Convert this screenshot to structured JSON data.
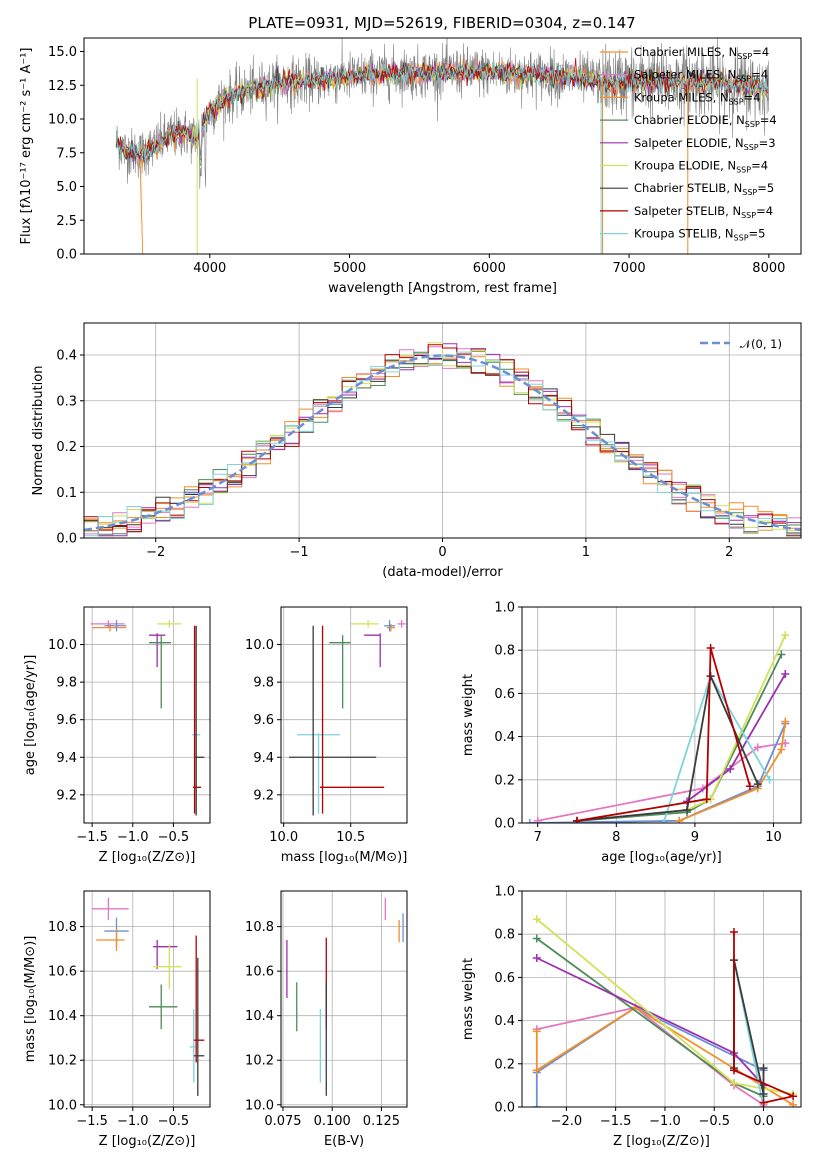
{
  "page": {
    "title": "PLATE=0931, MJD=52619, FIBERID=0304, z=0.147"
  },
  "colors": [
    "#f28e2b",
    "#e377c2",
    "#f28e2b",
    "#4e8c5a",
    "#9b30b0",
    "#d4e157",
    "#3b3b3b",
    "#b30000",
    "#7fd3dc"
  ],
  "chart_data": [
    {
      "id": "spectrum",
      "type": "line",
      "title": "PLATE=0931, MJD=52619, FIBERID=0304, z=0.147",
      "xlabel": "wavelength [Angstrom, rest frame]",
      "ylabel": "Flux [fλ10⁻¹⁷ erg cm⁻² s⁻¹ A⁻¹]",
      "xlim": [
        3100,
        8230
      ],
      "ylim": [
        0,
        16
      ],
      "xticks": [
        "4000",
        "5000",
        "6000",
        "7000",
        "8000"
      ],
      "yticks": [
        "0.0",
        "2.5",
        "5.0",
        "7.5",
        "10.0",
        "12.5",
        "15.0"
      ],
      "grid": false,
      "legend": "upper right",
      "series": [
        {
          "name": "Chabrier MILES, N",
          "sub": "SSP",
          "suffix": "=4",
          "color": "#f28e2b"
        },
        {
          "name": "Salpeter MILES, N",
          "sub": "SSP",
          "suffix": "=4",
          "color": "#e377c2"
        },
        {
          "name": "Kroupa MILES, N",
          "sub": "SSP",
          "suffix": "=4",
          "color": "#f28e2b"
        },
        {
          "name": "Chabrier ELODIE, N",
          "sub": "SSP",
          "suffix": "=4",
          "color": "#4e8c5a"
        },
        {
          "name": "Salpeter ELODIE, N",
          "sub": "SSP",
          "suffix": "=3",
          "color": "#9b30b0"
        },
        {
          "name": "Kroupa ELODIE, N",
          "sub": "SSP",
          "suffix": "=4",
          "color": "#d4e157"
        },
        {
          "name": "Chabrier STELIB, N",
          "sub": "SSP",
          "suffix": "=5",
          "color": "#3b3b3b"
        },
        {
          "name": "Salpeter STELIB, N",
          "sub": "SSP",
          "suffix": "=4",
          "color": "#b30000"
        },
        {
          "name": "Kroupa STELIB, N",
          "sub": "SSP",
          "suffix": "=5",
          "color": "#7fd3dc"
        }
      ],
      "continuum": [
        [
          3330,
          8.3
        ],
        [
          3400,
          7.6
        ],
        [
          3500,
          7.4
        ],
        [
          3600,
          7.9
        ],
        [
          3700,
          8.7
        ],
        [
          3800,
          9.0
        ],
        [
          3900,
          8.6
        ],
        [
          4000,
          10.5
        ],
        [
          4100,
          11.5
        ],
        [
          4300,
          12.2
        ],
        [
          4500,
          12.7
        ],
        [
          4700,
          12.8
        ],
        [
          4900,
          13.0
        ],
        [
          5100,
          13.2
        ],
        [
          5300,
          13.4
        ],
        [
          5500,
          13.4
        ],
        [
          5700,
          13.5
        ],
        [
          5900,
          13.5
        ],
        [
          6100,
          13.4
        ],
        [
          6300,
          13.3
        ],
        [
          6500,
          13.2
        ],
        [
          6700,
          12.9
        ],
        [
          6900,
          12.7
        ],
        [
          7100,
          12.8
        ],
        [
          7300,
          12.7
        ],
        [
          7500,
          12.8
        ],
        [
          7700,
          12.6
        ],
        [
          7900,
          12.4
        ],
        [
          8000,
          12.3
        ]
      ]
    },
    {
      "id": "residuals",
      "type": "step",
      "xlabel": "(data-model)/error",
      "ylabel": "Normed distribution",
      "xlim": [
        -2.5,
        2.5
      ],
      "ylim": [
        0,
        0.47
      ],
      "xticks": [
        "−2",
        "−1",
        "0",
        "1",
        "2"
      ],
      "yticks": [
        "0.0",
        "0.1",
        "0.2",
        "0.3",
        "0.4"
      ],
      "grid": true,
      "legend": "upper right",
      "legend_label": "𝒩(0, 1)",
      "legend_color": "#6b8fd6",
      "bin_width": 0.1
    },
    {
      "id": "age_vs_Z",
      "type": "errorbar",
      "xlabel": "Z [log₁₀(Z/Z⊙)]",
      "ylabel": "age  [log₁₀(age/yr)]",
      "xlim": [
        -1.6,
        -0.05
      ],
      "ylim": [
        9.05,
        10.2
      ],
      "xticks": [
        "−1.5",
        "−1.0",
        "−0.5"
      ],
      "yticks": [
        "9.2",
        "9.4",
        "9.6",
        "9.8",
        "10.0"
      ],
      "grid": true,
      "points": [
        {
          "color": "#e377c2",
          "x": -1.3,
          "xerr": [
            0.22,
            0.2
          ],
          "y": 10.11,
          "yerr": [
            0.02,
            0.02
          ]
        },
        {
          "color": "#f28e2b",
          "x": -1.28,
          "xerr": [
            0.22,
            0.2
          ],
          "y": 10.09,
          "yerr": [
            0.02,
            0.02
          ]
        },
        {
          "color": "#6b8fd6",
          "x": -1.2,
          "xerr": [
            0.15,
            0.12
          ],
          "y": 10.1,
          "yerr": [
            0.03,
            0.03
          ]
        },
        {
          "color": "#d4e157",
          "x": -0.55,
          "xerr": [
            0.15,
            0.15
          ],
          "y": 10.11,
          "yerr": [
            0.02,
            0.02
          ]
        },
        {
          "color": "#9b30b0",
          "x": -0.7,
          "xerr": [
            0.1,
            0.1
          ],
          "y": 10.05,
          "yerr": [
            0.17,
            0.01
          ]
        },
        {
          "color": "#4e8c5a",
          "x": -0.65,
          "xerr": [
            0.15,
            0.12
          ],
          "y": 10.01,
          "yerr": [
            0.35,
            0.04
          ]
        },
        {
          "color": "#7fd3dc",
          "x": -0.22,
          "xerr": [
            0.05,
            0.05
          ],
          "y": 9.52,
          "yerr": [
            0.42,
            0.01
          ]
        },
        {
          "color": "#3b3b3b",
          "x": -0.22,
          "xerr": [
            0.02,
            0.1
          ],
          "y": 9.4,
          "yerr": [
            0.31,
            0.7
          ]
        },
        {
          "color": "#b30000",
          "x": -0.24,
          "xerr": [
            0.02,
            0.08
          ],
          "y": 9.24,
          "yerr": [
            0.14,
            0.86
          ]
        }
      ]
    },
    {
      "id": "age_vs_mass",
      "type": "errorbar",
      "xlabel": "mass [log₁₀(M/M⊙)]",
      "ylabel": "",
      "xlim": [
        9.98,
        10.92
      ],
      "ylim": [
        9.05,
        10.2
      ],
      "xticks": [
        "10.0",
        "10.5"
      ],
      "yticks": [
        "9.2",
        "9.4",
        "9.6",
        "9.8",
        "10.0"
      ],
      "grid": true,
      "points": [
        {
          "color": "#e377c2",
          "x": 10.88,
          "xerr": [
            0.03,
            0.03
          ],
          "y": 10.11,
          "yerr": [
            0.02,
            0.02
          ]
        },
        {
          "color": "#f28e2b",
          "x": 10.8,
          "xerr": [
            0.03,
            0.03
          ],
          "y": 10.09,
          "yerr": [
            0.02,
            0.02
          ]
        },
        {
          "color": "#6b8fd6",
          "x": 10.79,
          "xerr": [
            0.04,
            0.04
          ],
          "y": 10.1,
          "yerr": [
            0.03,
            0.03
          ]
        },
        {
          "color": "#d4e157",
          "x": 10.63,
          "xerr": [
            0.13,
            0.08
          ],
          "y": 10.11,
          "yerr": [
            0.02,
            0.02
          ]
        },
        {
          "color": "#9b30b0",
          "x": 10.72,
          "xerr": [
            0.12,
            0.0
          ],
          "y": 10.05,
          "yerr": [
            0.17,
            0.01
          ]
        },
        {
          "color": "#4e8c5a",
          "x": 10.44,
          "xerr": [
            0.1,
            0.06
          ],
          "y": 10.01,
          "yerr": [
            0.35,
            0.04
          ]
        },
        {
          "color": "#7fd3dc",
          "x": 10.26,
          "xerr": [
            0.16,
            0.16
          ],
          "y": 9.52,
          "yerr": [
            0.42,
            0.01
          ]
        },
        {
          "color": "#3b3b3b",
          "x": 10.22,
          "xerr": [
            0.18,
            0.47
          ],
          "y": 9.4,
          "yerr": [
            0.31,
            0.7
          ]
        },
        {
          "color": "#b30000",
          "x": 10.29,
          "xerr": [
            0.02,
            0.46
          ],
          "y": 9.24,
          "yerr": [
            0.14,
            0.86
          ]
        }
      ]
    },
    {
      "id": "massweight_vs_age",
      "type": "line",
      "xlabel": "age  [log₁₀(age/yr)]",
      "ylabel": "mass weight",
      "xlim": [
        6.8,
        10.35
      ],
      "ylim": [
        0,
        1
      ],
      "xticks": [
        "7",
        "8",
        "9",
        "10"
      ],
      "yticks": [
        "0.0",
        "0.2",
        "0.4",
        "0.6",
        "0.8",
        "1.0"
      ],
      "grid": true,
      "series": [
        {
          "color": "#e377c2",
          "x": [
            7.0,
            9.1,
            9.8,
            10.15
          ],
          "y": [
            0.01,
            0.16,
            0.35,
            0.37
          ]
        },
        {
          "color": "#6b8fd6",
          "x": [
            6.9,
            8.8,
            9.8,
            10.15
          ],
          "y": [
            0.0,
            0.01,
            0.17,
            0.46
          ]
        },
        {
          "color": "#f28e2b",
          "x": [
            8.8,
            9.8,
            10.1,
            10.15
          ],
          "y": [
            0.01,
            0.16,
            0.34,
            0.47
          ]
        },
        {
          "color": "#4e8c5a",
          "x": [
            7.5,
            8.9,
            9.2,
            10.1
          ],
          "y": [
            0.01,
            0.05,
            0.11,
            0.78
          ]
        },
        {
          "color": "#9b30b0",
          "x": [
            8.9,
            9.45,
            10.15
          ],
          "y": [
            0.1,
            0.25,
            0.69
          ]
        },
        {
          "color": "#d4e157",
          "x": [
            8.9,
            9.2,
            10.15
          ],
          "y": [
            0.06,
            0.11,
            0.87
          ]
        },
        {
          "color": "#7fd3dc",
          "x": [
            8.6,
            9.2,
            9.95
          ],
          "y": [
            0.0,
            0.68,
            0.2
          ]
        },
        {
          "color": "#3b3b3b",
          "x": [
            7.5,
            8.9,
            9.2,
            9.8
          ],
          "y": [
            0.01,
            0.06,
            0.68,
            0.18
          ]
        },
        {
          "color": "#b30000",
          "x": [
            7.5,
            9.15,
            9.2,
            9.7
          ],
          "y": [
            0.01,
            0.11,
            0.81,
            0.17
          ]
        }
      ]
    },
    {
      "id": "mass_vs_Z",
      "type": "errorbar",
      "xlabel": "Z [log₁₀(Z/Z⊙)]",
      "ylabel": "mass [log₁₀(M/M⊙)]",
      "xlim": [
        -1.6,
        -0.05
      ],
      "ylim": [
        9.99,
        10.96
      ],
      "xticks": [
        "−1.5",
        "−1.0",
        "−0.5"
      ],
      "yticks": [
        "10.0",
        "10.2",
        "10.4",
        "10.6",
        "10.8"
      ],
      "grid": true,
      "points": [
        {
          "color": "#e377c2",
          "x": -1.3,
          "xerr": [
            0.2,
            0.25
          ],
          "y": 10.88,
          "yerr": [
            0.05,
            0.05
          ]
        },
        {
          "color": "#6b8fd6",
          "x": -1.2,
          "xerr": [
            0.15,
            0.15
          ],
          "y": 10.78,
          "yerr": [
            0.07,
            0.06
          ]
        },
        {
          "color": "#f28e2b",
          "x": -1.2,
          "xerr": [
            0.25,
            0.1
          ],
          "y": 10.74,
          "yerr": [
            0.05,
            0.05
          ]
        },
        {
          "color": "#9b30b0",
          "x": -0.7,
          "xerr": [
            0.05,
            0.25
          ],
          "y": 10.71,
          "yerr": [
            0.1,
            0.03
          ]
        },
        {
          "color": "#d4e157",
          "x": -0.55,
          "xerr": [
            0.2,
            0.15
          ],
          "y": 10.62,
          "yerr": [
            0.1,
            0.1
          ]
        },
        {
          "color": "#4e8c5a",
          "x": -0.65,
          "xerr": [
            0.15,
            0.2
          ],
          "y": 10.44,
          "yerr": [
            0.1,
            0.1
          ]
        },
        {
          "color": "#7fd3dc",
          "x": -0.25,
          "xerr": [
            0.05,
            0.03
          ],
          "y": 10.26,
          "yerr": [
            0.16,
            0.17
          ]
        },
        {
          "color": "#b30000",
          "x": -0.22,
          "xerr": [
            0.03,
            0.1
          ],
          "y": 10.29,
          "yerr": [
            0.1,
            0.47
          ]
        },
        {
          "color": "#3b3b3b",
          "x": -0.2,
          "xerr": [
            0.05,
            0.08
          ],
          "y": 10.22,
          "yerr": [
            0.18,
            0.44
          ]
        }
      ]
    },
    {
      "id": "mass_vs_EBV",
      "type": "errorbar",
      "xlabel": "E(B-V)",
      "ylabel": "",
      "xlim": [
        0.074,
        0.138
      ],
      "ylim": [
        9.99,
        10.96
      ],
      "xticks": [
        "0.075",
        "0.100",
        "0.125"
      ],
      "yticks": [
        "10.0",
        "10.2",
        "10.4",
        "10.6",
        "10.8"
      ],
      "grid": true,
      "points": [
        {
          "color": "#e377c2",
          "x": 0.127,
          "xerr": [
            0.0,
            0.0
          ],
          "y": 10.88,
          "yerr": [
            0.05,
            0.05
          ]
        },
        {
          "color": "#6b8fd6",
          "x": 0.136,
          "xerr": [
            0.0,
            0.0
          ],
          "y": 10.8,
          "yerr": [
            0.07,
            0.06
          ]
        },
        {
          "color": "#f28e2b",
          "x": 0.134,
          "xerr": [
            0.0,
            0.0
          ],
          "y": 10.78,
          "yerr": [
            0.05,
            0.05
          ]
        },
        {
          "color": "#9b30b0",
          "x": 0.077,
          "xerr": [
            0.0,
            0.0
          ],
          "y": 10.61,
          "yerr": [
            0.13,
            0.13
          ]
        },
        {
          "color": "#4e8c5a",
          "x": 0.082,
          "xerr": [
            0.0,
            0.0
          ],
          "y": 10.44,
          "yerr": [
            0.11,
            0.11
          ]
        },
        {
          "color": "#7fd3dc",
          "x": 0.094,
          "xerr": [
            0.0,
            0.0
          ],
          "y": 10.26,
          "yerr": [
            0.16,
            0.17
          ]
        },
        {
          "color": "#b30000",
          "x": 0.097,
          "xerr": [
            0.0,
            0.0
          ],
          "y": 10.45,
          "yerr": [
            0.11,
            0.3
          ]
        },
        {
          "color": "#3b3b3b",
          "x": 0.097,
          "xerr": [
            0.0,
            0.0
          ],
          "y": 10.3,
          "yerr": [
            0.26,
            0.25
          ]
        }
      ]
    },
    {
      "id": "massweight_vs_Z",
      "type": "line",
      "xlabel": "Z [log₁₀(Z/Z⊙)]",
      "ylabel": "mass weight",
      "xlim": [
        -2.45,
        0.38
      ],
      "ylim": [
        0,
        1
      ],
      "xticks": [
        "−2.0",
        "−1.5",
        "−1.0",
        "−0.5",
        "0.0"
      ],
      "yticks": [
        "0.0",
        "0.2",
        "0.4",
        "0.6",
        "0.8",
        "1.0"
      ],
      "grid": true,
      "series": [
        {
          "color": "#e377c2",
          "x": [
            -2.3,
            -1.3,
            -0.3,
            0.0
          ],
          "y": [
            0.36,
            0.46,
            0.1,
            0.01
          ]
        },
        {
          "color": "#6b8fd6",
          "x": [
            -2.3,
            -2.3,
            -1.3,
            0.0
          ],
          "y": [
            0.0,
            0.16,
            0.46,
            0.17
          ]
        },
        {
          "color": "#f28e2b",
          "x": [
            -2.3,
            -2.3,
            -1.3,
            0.3
          ],
          "y": [
            0.35,
            0.17,
            0.46,
            0.01
          ]
        },
        {
          "color": "#4e8c5a",
          "x": [
            -2.3,
            -0.3,
            0.0
          ],
          "y": [
            0.78,
            0.11,
            0.05
          ]
        },
        {
          "color": "#9b30b0",
          "x": [
            -2.3,
            -0.3,
            0.0
          ],
          "y": [
            0.69,
            0.25,
            0.1
          ]
        },
        {
          "color": "#d4e157",
          "x": [
            -2.3,
            -0.3,
            0.3
          ],
          "y": [
            0.87,
            0.11,
            0.06
          ]
        },
        {
          "color": "#7fd3dc",
          "x": [
            -0.3,
            -0.3,
            0.0
          ],
          "y": [
            0.2,
            0.68,
            0.0
          ]
        },
        {
          "color": "#3b3b3b",
          "x": [
            -0.3,
            -0.3,
            0.0,
            0.0
          ],
          "y": [
            0.18,
            0.68,
            0.06,
            0.18
          ]
        },
        {
          "color": "#b30000",
          "x": [
            -0.3,
            -0.3,
            0.3,
            0.0
          ],
          "y": [
            0.81,
            0.17,
            0.05,
            0.02
          ]
        }
      ]
    }
  ]
}
